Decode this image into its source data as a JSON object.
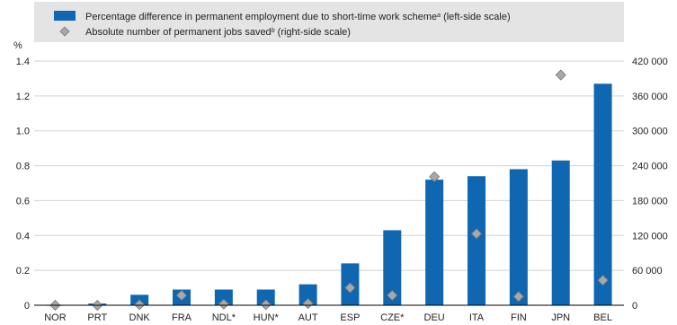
{
  "chart_data": {
    "type": "bar",
    "left_unit": "%",
    "categories": [
      "NOR",
      "PRT",
      "DNK",
      "FRA",
      "NDL*",
      "HUN*",
      "AUT",
      "ESP",
      "CZE*",
      "DEU",
      "ITA",
      "FIN",
      "JPN",
      "BEL"
    ],
    "series": [
      {
        "name_prefix": "Percentage difference in permanent employment due to short-time work scheme",
        "name_sup": "a",
        "name_suffix": " (left-side scale)",
        "type": "bar",
        "axis": "left",
        "color": "#0f67b1",
        "values": [
          0.0,
          0.01,
          0.06,
          0.09,
          0.09,
          0.09,
          0.12,
          0.24,
          0.43,
          0.72,
          0.74,
          0.78,
          0.83,
          1.27
        ]
      },
      {
        "name_prefix": "Absolute number of permanent jobs saved",
        "name_sup": "b",
        "name_suffix": " (right-side scale)",
        "type": "scatter",
        "axis": "right",
        "marker": "diamond",
        "color": "#a8a8a8",
        "values": [
          0,
          0,
          1000,
          17000,
          2000,
          1000,
          3000,
          30000,
          17000,
          221000,
          123000,
          15000,
          396000,
          43000
        ]
      }
    ],
    "y_left": {
      "lim": [
        0,
        1.4
      ],
      "ticks": [
        "0",
        "0.2",
        "0.4",
        "0.6",
        "0.8",
        "1.0",
        "1.2",
        "1.4"
      ]
    },
    "y_right": {
      "lim": [
        0,
        420000
      ],
      "ticks": [
        "0",
        "60 000",
        "120 000",
        "180 000",
        "240 000",
        "300 000",
        "360 000",
        "420 000"
      ]
    },
    "grid": true,
    "legend_position": "top"
  }
}
